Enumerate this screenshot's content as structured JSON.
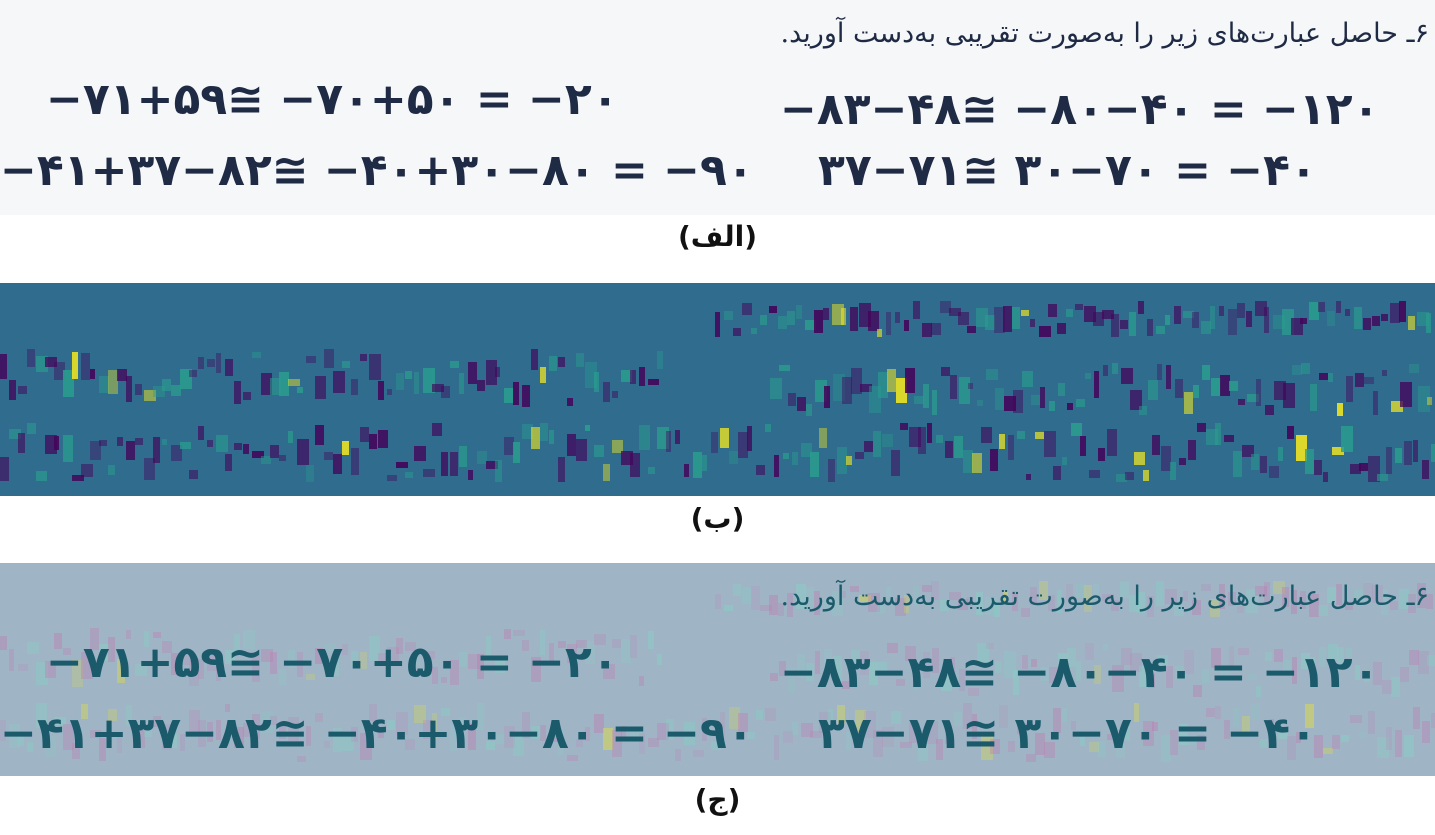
{
  "figure": {
    "instruction": "۶ـ حاصل عبارت‌های زیر را به‌صورت تقریبی به‌دست آورید.",
    "expressions": [
      "−۷۱+۵۹≅ −۷۰+۵۰ = −۲۰",
      "−۸۳−۴۸≅ −۸۰−۴۰ = −۱۲۰",
      "−۴۱+۳۷−۸۲≅ −۴۰+۳۰−۸۰ = −۹۰",
      "۳۷−۷۱≅ ۳۰−۷۰ = −۴۰"
    ],
    "captions": {
      "a": "(الف)",
      "b": "(ب)",
      "c": "(ج)"
    },
    "colors": {
      "heatmap_base": "#2f6c8e",
      "heatmap_low": "#44035a",
      "heatmap_mid": "#2a9d8e",
      "heatmap_high": "#f0e520",
      "overlay_base": "#9fb5c6"
    }
  }
}
